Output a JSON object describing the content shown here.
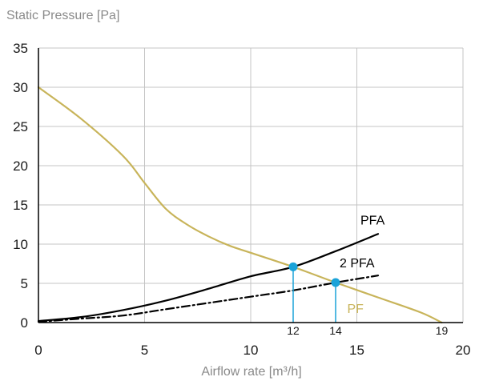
{
  "chart_data": {
    "type": "line",
    "title": "",
    "ylabel": "Static Pressure [Pa]",
    "xlabel": "Airflow rate [m³/h]",
    "xlim": [
      0,
      20
    ],
    "ylim": [
      0,
      35
    ],
    "xticks": [
      0,
      5,
      10,
      15,
      20
    ],
    "yticks": [
      0,
      5,
      10,
      15,
      20,
      25,
      30,
      35
    ],
    "grid": true,
    "colors": {
      "PF": "#c8b45a",
      "PFA": "#000000",
      "2 PFA": "#000000",
      "markers": "#1aa3d9"
    },
    "series": [
      {
        "name": "PF",
        "style": "solid",
        "x": [
          0,
          2,
          4,
          5,
          6,
          7,
          8,
          9,
          10,
          12,
          14,
          16,
          18,
          19
        ],
        "y": [
          30,
          26,
          21.2,
          17.8,
          14.5,
          12.5,
          11,
          9.8,
          8.9,
          7.1,
          5.1,
          3.2,
          1.3,
          0
        ]
      },
      {
        "name": "PFA",
        "style": "solid",
        "x": [
          0,
          2,
          4,
          6,
          8,
          10,
          12,
          14,
          16
        ],
        "y": [
          0.2,
          0.7,
          1.6,
          2.8,
          4.3,
          5.9,
          7.1,
          9.1,
          11.3
        ]
      },
      {
        "name": "2 PFA",
        "style": "dashdot",
        "x": [
          0,
          2,
          4,
          6,
          8,
          10,
          12,
          14,
          16
        ],
        "y": [
          0.1,
          0.5,
          0.9,
          1.7,
          2.5,
          3.3,
          4.1,
          5.1,
          6.0
        ]
      }
    ],
    "operating_points": [
      {
        "x": 12,
        "y": 7.1,
        "label": "12"
      },
      {
        "x": 14,
        "y": 5.1,
        "label": "14"
      }
    ],
    "extra_ticks": [
      {
        "x": 19,
        "label": "19"
      }
    ]
  }
}
